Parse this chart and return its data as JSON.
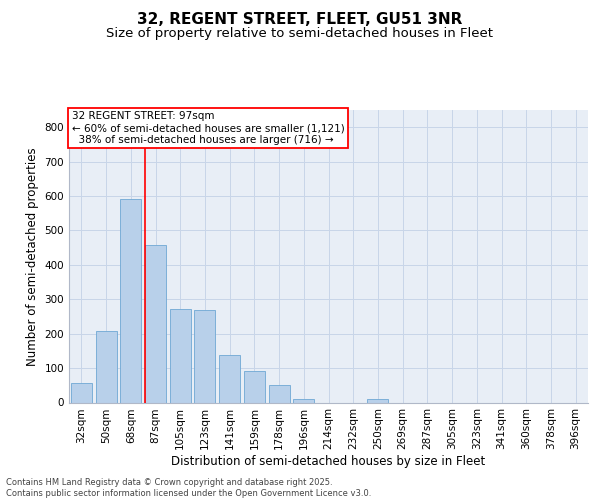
{
  "title": "32, REGENT STREET, FLEET, GU51 3NR",
  "subtitle": "Size of property relative to semi-detached houses in Fleet",
  "xlabel": "Distribution of semi-detached houses by size in Fleet",
  "ylabel": "Number of semi-detached properties",
  "categories": [
    "32sqm",
    "50sqm",
    "68sqm",
    "87sqm",
    "105sqm",
    "123sqm",
    "141sqm",
    "159sqm",
    "178sqm",
    "196sqm",
    "214sqm",
    "232sqm",
    "250sqm",
    "269sqm",
    "287sqm",
    "305sqm",
    "323sqm",
    "341sqm",
    "360sqm",
    "378sqm",
    "396sqm"
  ],
  "values": [
    57,
    209,
    591,
    459,
    271,
    268,
    139,
    92,
    50,
    10,
    0,
    0,
    11,
    0,
    0,
    0,
    0,
    0,
    0,
    0,
    0
  ],
  "bar_color": "#b8d0ea",
  "bar_edge_color": "#6fa8d4",
  "grid_color": "#c8d5e8",
  "background_color": "#e8eef6",
  "property_label": "32 REGENT STREET: 97sqm",
  "pct_smaller": 60,
  "count_smaller": 1121,
  "pct_larger": 38,
  "count_larger": 716,
  "vline_x": 2.57,
  "ylim": [
    0,
    850
  ],
  "yticks": [
    0,
    100,
    200,
    300,
    400,
    500,
    600,
    700,
    800
  ],
  "footer": "Contains HM Land Registry data © Crown copyright and database right 2025.\nContains public sector information licensed under the Open Government Licence v3.0.",
  "title_fontsize": 11,
  "subtitle_fontsize": 9.5,
  "tick_fontsize": 7.5,
  "label_fontsize": 8.5,
  "annotation_fontsize": 7.5
}
